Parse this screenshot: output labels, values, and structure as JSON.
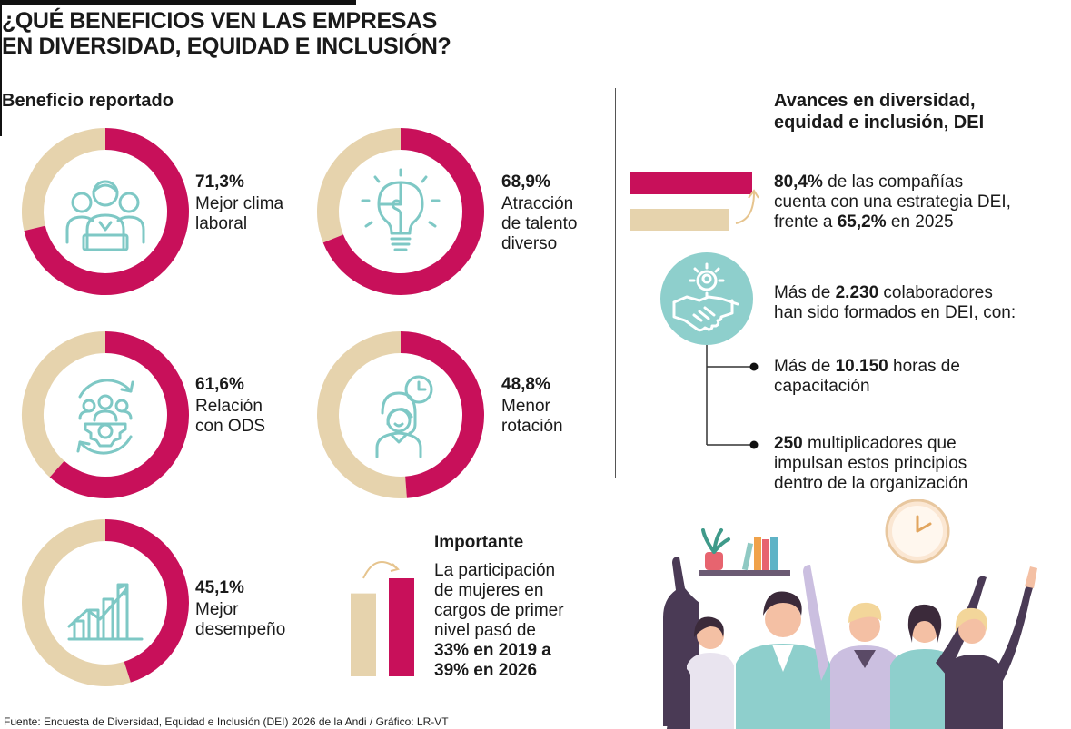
{
  "title_line1": "¿QUÉ BENEFICIOS VEN LAS EMPRESAS",
  "title_line2": "EN DIVERSIDAD, EQUIDAD E INCLUSIÓN?",
  "left_section": "Beneficio reportado",
  "right_section_line1": "Avances en diversidad,",
  "right_section_line2": "equidad e inclusión, DEI",
  "colors": {
    "accent": "#c8105a",
    "beige": "#e6d3ad",
    "teal": "#8ecfcc",
    "teal_dark": "#7ec8c5"
  },
  "chart_data": [
    {
      "type": "pie",
      "title": "Beneficio reportado",
      "slices": [
        {
          "pct_label": "71,3%",
          "value": 71.3,
          "label_line1": "Mejor clima",
          "label_line2": "laboral",
          "label_line3": "",
          "icon": "people-group-icon"
        },
        {
          "pct_label": "68,9%",
          "value": 68.9,
          "label_line1": "Atracción",
          "label_line2": "de talento",
          "label_line3": "diverso",
          "icon": "lightbulb-puzzle-icon"
        },
        {
          "pct_label": "61,6%",
          "value": 61.6,
          "label_line1": "Relación",
          "label_line2": "con ODS",
          "label_line3": "",
          "icon": "people-gear-icon"
        },
        {
          "pct_label": "48,8%",
          "value": 48.8,
          "label_line1": "Menor",
          "label_line2": "rotación",
          "label_line3": "",
          "icon": "woman-clock-icon"
        },
        {
          "pct_label": "45,1%",
          "value": 45.1,
          "label_line1": "Mejor",
          "label_line2": "desempeño",
          "label_line3": "",
          "icon": "growth-chart-icon"
        }
      ]
    },
    {
      "type": "bar",
      "categories": [
        "2026",
        "2025"
      ],
      "values": [
        80.4,
        65.2
      ]
    },
    {
      "type": "bar",
      "categories": [
        "2019",
        "2026"
      ],
      "values": [
        33,
        39
      ]
    }
  ],
  "stats": {
    "strategy": {
      "bold1": "80,4%",
      "text1": " de las compañías",
      "line2": "cuenta con una estrategia DEI,",
      "text3a": "frente a ",
      "bold3": "65,2%",
      "text3b": " en 2025"
    },
    "trained": {
      "text1a": "Más de ",
      "bold1": "2.230",
      "text1b": " colaboradores",
      "line2": "han sido formados en DEI, con:"
    },
    "hours": {
      "text1a": "Más de ",
      "bold1": "10.150",
      "text1b": " horas de",
      "line2": "capacitación"
    },
    "multipliers": {
      "bold1": "250",
      "text1": " multiplicadores que",
      "line2": "impulsan estos principios",
      "line3": "dentro de la organización"
    }
  },
  "important": {
    "title": "Importante",
    "line1": "La participación",
    "line2": "de mujeres en",
    "line3": "cargos de primer",
    "line4": "nivel pasó de",
    "line5": "33% en 2019 a",
    "line6": "39% en 2026"
  },
  "source": "Fuente: Encuesta de Diversidad, Equidad e Inclusión (DEI) 2026 de la Andi / Gráfico: LR-VT"
}
